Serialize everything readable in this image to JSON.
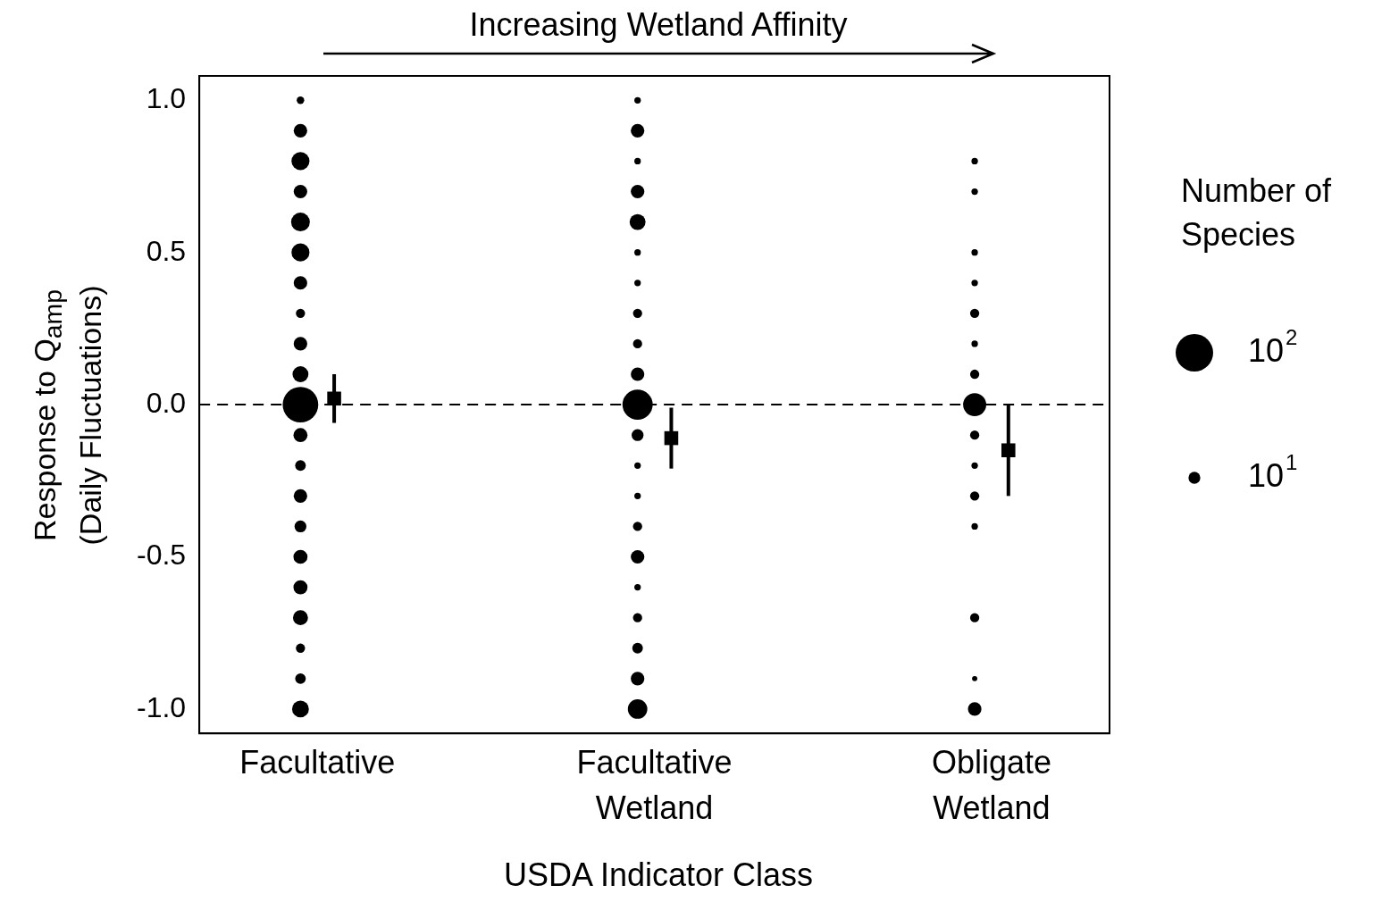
{
  "chart_data": {
    "type": "bubble",
    "xlabel": "USDA Indicator Class",
    "ylabel": "Response to Q$_{amp}$\n(Daily Fluctuations)",
    "legend_title": "Number of\nSpecies",
    "annotations": [
      "Increasing Wetland Affinity"
    ],
    "categories": [
      "Facultative",
      "Facultative\nWetland",
      "Obligate\nWetland"
    ],
    "ylim": [
      -1.08,
      1.08
    ],
    "yticks": [
      {
        "value": -1,
        "label": "-1.0"
      },
      {
        "value": -0.5,
        "label": "-0.5"
      },
      {
        "value": 0,
        "label": "0.0"
      },
      {
        "value": 0.5,
        "label": "0.5"
      },
      {
        "value": 1,
        "label": "1.0"
      }
    ],
    "size_legend": [
      {
        "value": 100,
        "label": "10$^{2}$"
      },
      {
        "value": 10,
        "label": "10$^{1}$"
      }
    ],
    "ref_lines": [
      {
        "axis": "y",
        "value": 0,
        "color": "#000000",
        "line_style": "dashed"
      }
    ],
    "series": [
      {
        "color": "#000000",
        "x": [
          "Facultative",
          "Facultative",
          "Facultative",
          "Facultative",
          "Facultative",
          "Facultative",
          "Facultative",
          "Facultative",
          "Facultative",
          "Facultative",
          "Facultative",
          "Facultative",
          "Facultative",
          "Facultative",
          "Facultative",
          "Facultative",
          "Facultative",
          "Facultative",
          "Facultative",
          "Facultative",
          "Facultative"
        ],
        "values": [
          1.0,
          0.9,
          0.8,
          0.7,
          0.6,
          0.5,
          0.4,
          0.3,
          0.2,
          0.1,
          0.0,
          -0.1,
          -0.2,
          -0.3,
          -0.4,
          -0.5,
          -0.6,
          -0.7,
          -0.8,
          -0.9,
          -1.0
        ],
        "sizes": [
          4,
          13,
          23,
          13,
          25,
          23,
          13,
          6,
          13,
          18,
          90,
          14,
          8,
          13,
          10,
          14,
          14,
          16,
          6,
          8,
          20
        ]
      },
      {
        "color": "#000000",
        "x": [
          "Facultative\nWetland",
          "Facultative\nWetland",
          "Facultative\nWetland",
          "Facultative\nWetland",
          "Facultative\nWetland",
          "Facultative\nWetland",
          "Facultative\nWetland",
          "Facultative\nWetland",
          "Facultative\nWetland",
          "Facultative\nWetland",
          "Facultative\nWetland",
          "Facultative\nWetland",
          "Facultative\nWetland",
          "Facultative\nWetland",
          "Facultative\nWetland",
          "Facultative\nWetland",
          "Facultative\nWetland",
          "Facultative\nWetland",
          "Facultative\nWetland",
          "Facultative\nWetland",
          "Facultative\nWetland"
        ],
        "values": [
          1.0,
          0.9,
          0.8,
          0.7,
          0.6,
          0.5,
          0.4,
          0.3,
          0.2,
          0.1,
          0.0,
          -0.1,
          -0.2,
          -0.3,
          -0.4,
          -0.5,
          -0.6,
          -0.7,
          -0.8,
          -0.9,
          -1.0
        ],
        "sizes": [
          3,
          13,
          3,
          13,
          18,
          3,
          3,
          6,
          6,
          13,
          65,
          10,
          3,
          3,
          6,
          13,
          3,
          6,
          8,
          13,
          27
        ]
      },
      {
        "color": "#000000",
        "x": [
          "Obligate\nWetland",
          "Obligate\nWetland",
          "Obligate\nWetland",
          "Obligate\nWetland",
          "Obligate\nWetland",
          "Obligate\nWetland",
          "Obligate\nWetland",
          "Obligate\nWetland",
          "Obligate\nWetland",
          "Obligate\nWetland",
          "Obligate\nWetland",
          "Obligate\nWetland",
          "Obligate\nWetland",
          "Obligate\nWetland",
          "Obligate\nWetland"
        ],
        "values": [
          0.8,
          0.7,
          0.5,
          0.4,
          0.3,
          0.2,
          0.1,
          0.0,
          -0.1,
          -0.2,
          -0.3,
          -0.4,
          -0.7,
          -0.9,
          -1.0
        ],
        "sizes": [
          3,
          3,
          3,
          3,
          6,
          3,
          6,
          38,
          6,
          3,
          6,
          3,
          6,
          2,
          13
        ]
      },
      {
        "type": "scatter",
        "marker": "square",
        "color": "#000000",
        "x": [
          "Facultative",
          "Facultative\nWetland",
          "Obligate\nWetland"
        ],
        "values": [
          0.02,
          -0.11,
          -0.15
        ],
        "errors": [
          [
            -0.06,
            0.1
          ],
          [
            -0.21,
            -0.01
          ],
          [
            -0.3,
            0.0
          ]
        ]
      }
    ]
  }
}
